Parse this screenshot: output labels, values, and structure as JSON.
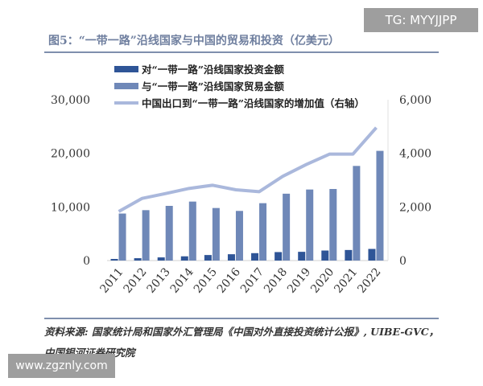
{
  "watermark_top": "TG: MYYJJPP",
  "watermark_bottom": "www.zgznly.com",
  "source": "资料来源: 国家统计局和国家外汇管理局《中国对外直接投资统计公报》, UIBE-GVC，中国银河证券研究院",
  "colors": {
    "investment": "#2f5597",
    "trade": "#6f88b8",
    "line": "#aab8dc",
    "title": "#6f7f9f"
  },
  "chart_data": {
    "type": "bar",
    "title": "图5：“一带一路”沿线国家与中国的贸易和投资（亿美元）",
    "categories": [
      "2011",
      "2012",
      "2013",
      "2014",
      "2015",
      "2016",
      "2017",
      "2018",
      "2019",
      "2020",
      "2021",
      "2022"
    ],
    "series": [
      {
        "name": "对“一带一路”沿线国家投资金额",
        "type": "bar",
        "axis": "left",
        "values": [
          300,
          440,
          590,
          790,
          1030,
          1180,
          1380,
          1580,
          1630,
          1870,
          1970,
          2170
        ]
      },
      {
        "name": "与“一带一路”沿线国家贸易金额",
        "type": "bar",
        "axis": "left",
        "values": [
          8770,
          9400,
          10200,
          11000,
          9800,
          9260,
          10700,
          12470,
          13250,
          13350,
          17650,
          20460
        ]
      },
      {
        "name": "中国出口到“一带一路”沿线国家的增加值（右轴）",
        "type": "line",
        "axis": "right",
        "values": [
          1830,
          2320,
          2500,
          2690,
          2810,
          2640,
          2570,
          3140,
          3580,
          3970,
          3970,
          4960
        ]
      }
    ],
    "ylim": [
      0,
      30000
    ],
    "yticks": [
      "0",
      "10,000",
      "20,000",
      "30,000"
    ],
    "y2lim": [
      0,
      6000
    ],
    "y2ticks": [
      "0",
      "2,000",
      "4,000",
      "6,000"
    ],
    "grid": false,
    "legend": "top"
  }
}
